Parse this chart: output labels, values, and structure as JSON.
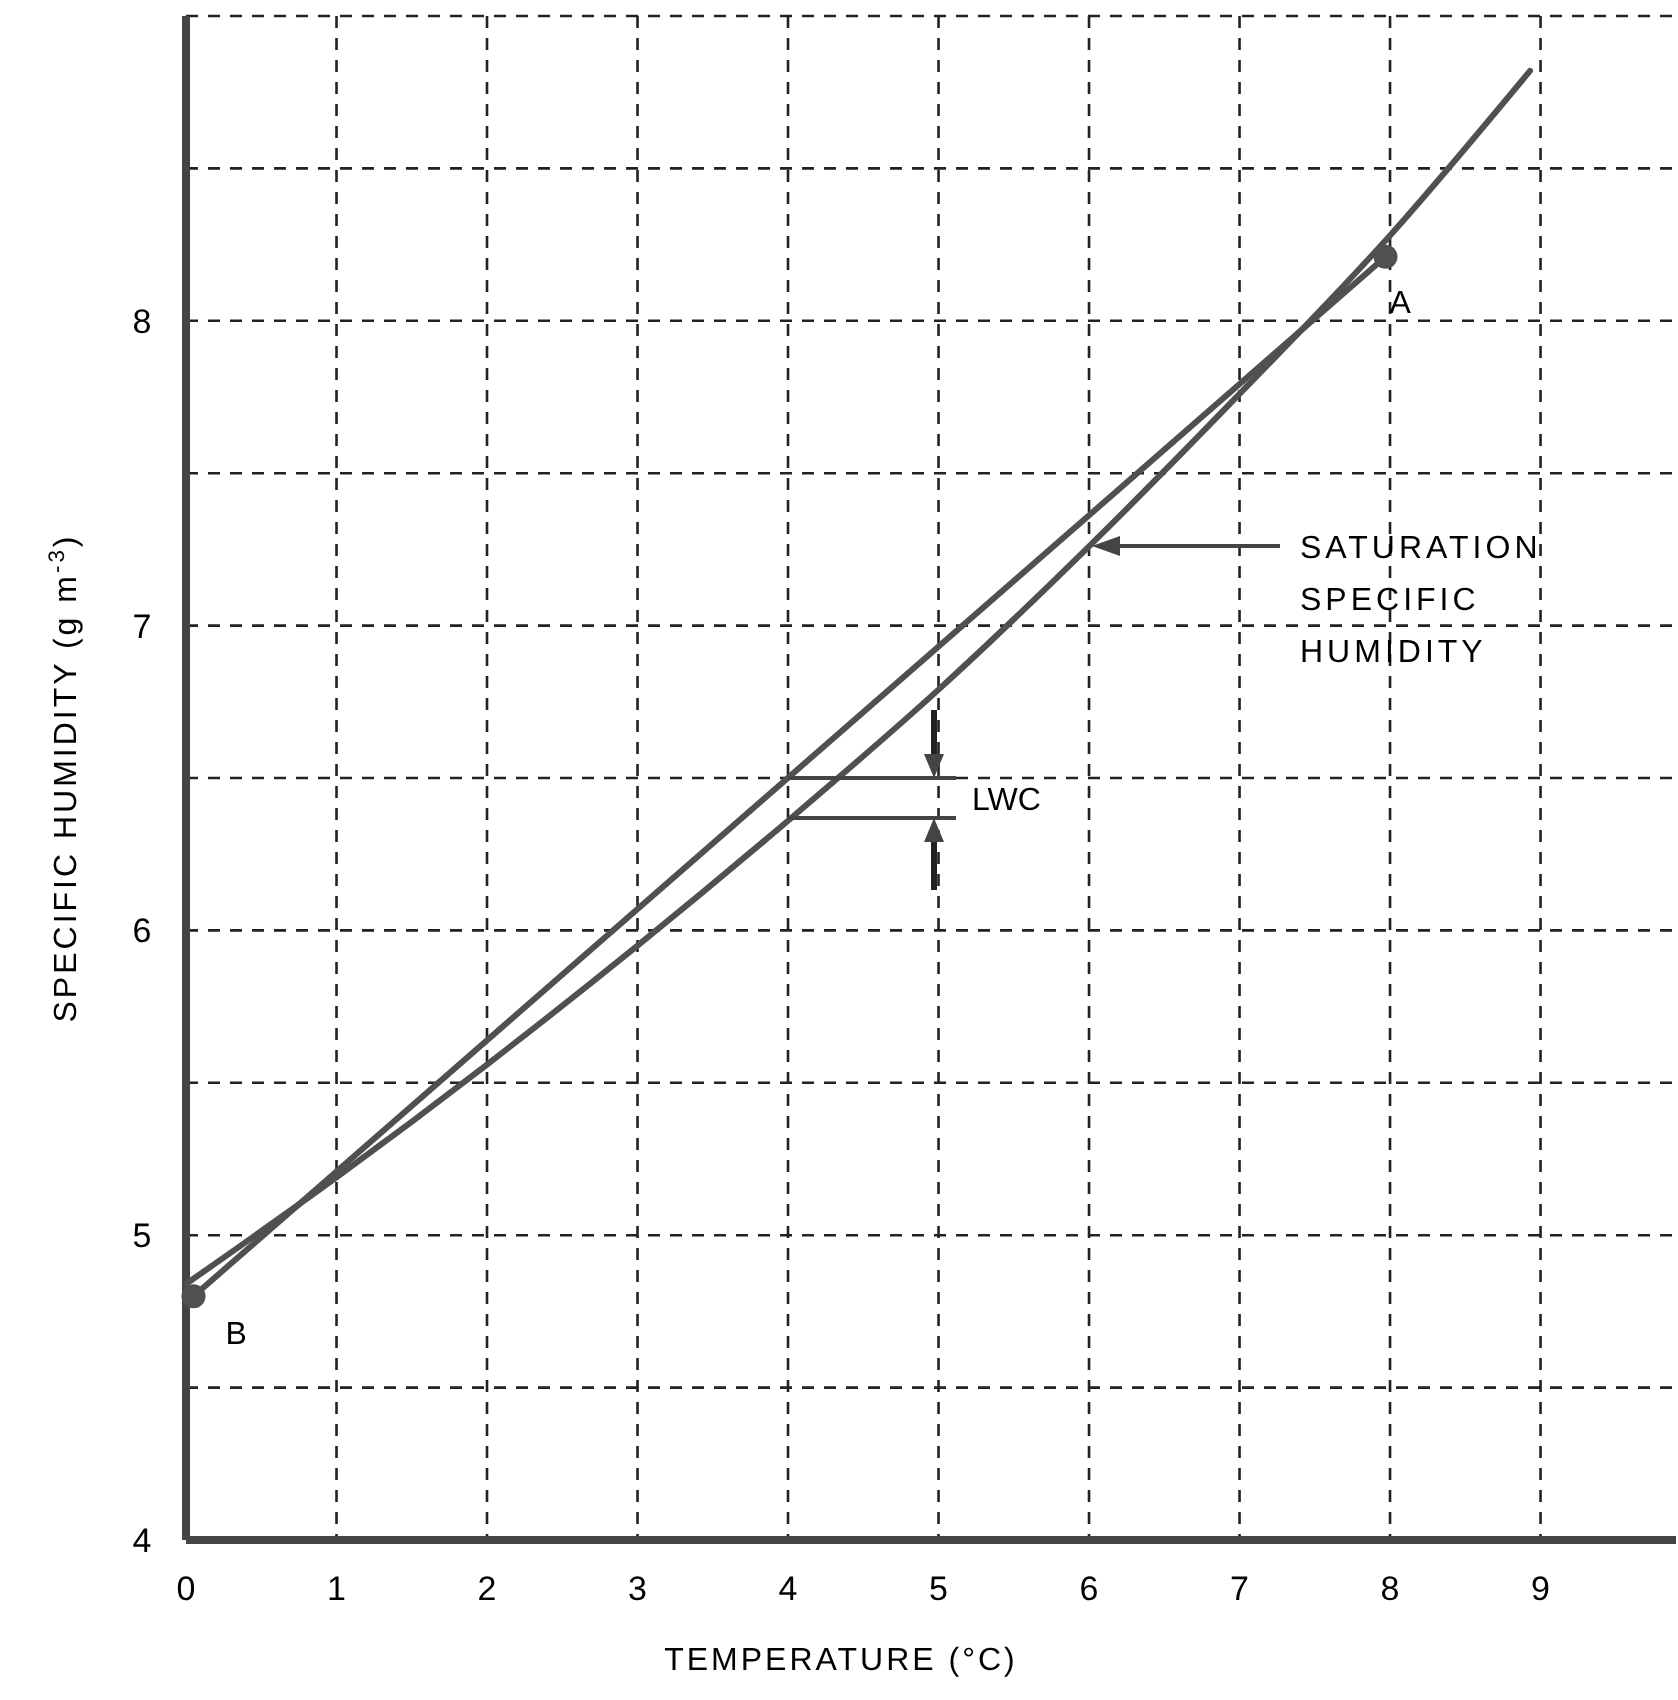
{
  "chart_data": {
    "type": "line",
    "xlabel": "TEMPERATURE (°C)",
    "ylabel": "SPECIFIC HUMIDITY (g m$^{-3}$)",
    "xlim": [
      0,
      9.9
    ],
    "ylim": [
      4,
      9
    ],
    "xticks": [
      0,
      1,
      2,
      3,
      4,
      5,
      6,
      7,
      8,
      9
    ],
    "yticks": [
      4,
      {
        "value": 4.5,
        "label": null
      },
      5,
      {
        "value": 5.5,
        "label": null
      },
      6,
      {
        "value": 6.5,
        "label": null
      },
      7,
      {
        "value": 7.5,
        "label": null
      },
      8,
      {
        "value": 8.5,
        "label": null
      },
      {
        "value": 9,
        "label": null
      }
    ],
    "grid": true,
    "line_style": "solid",
    "series": [
      {
        "color": "#505050",
        "marker": "circle",
        "x": [
          0.05,
          7.97
        ],
        "values": [
          4.8,
          8.21
        ]
      },
      {
        "color": "#505050",
        "marker": "none",
        "x": [
          0,
          1,
          2,
          3,
          4,
          5,
          6,
          7,
          8,
          8.93
        ],
        "values": [
          4.84,
          5.19,
          5.56,
          5.95,
          6.36,
          6.79,
          7.26,
          7.76,
          8.28,
          8.82
        ]
      }
    ],
    "annotations": [
      {
        "text": "A",
        "x": 7.97,
        "y": 8.21
      },
      {
        "text": "B",
        "x": 0.05,
        "y": 4.8
      },
      "SATURATION\nSPECIFIC\nHUMIDITY",
      {
        "text": "LWC",
        "x": 4,
        "y": 6.5
      }
    ]
  }
}
